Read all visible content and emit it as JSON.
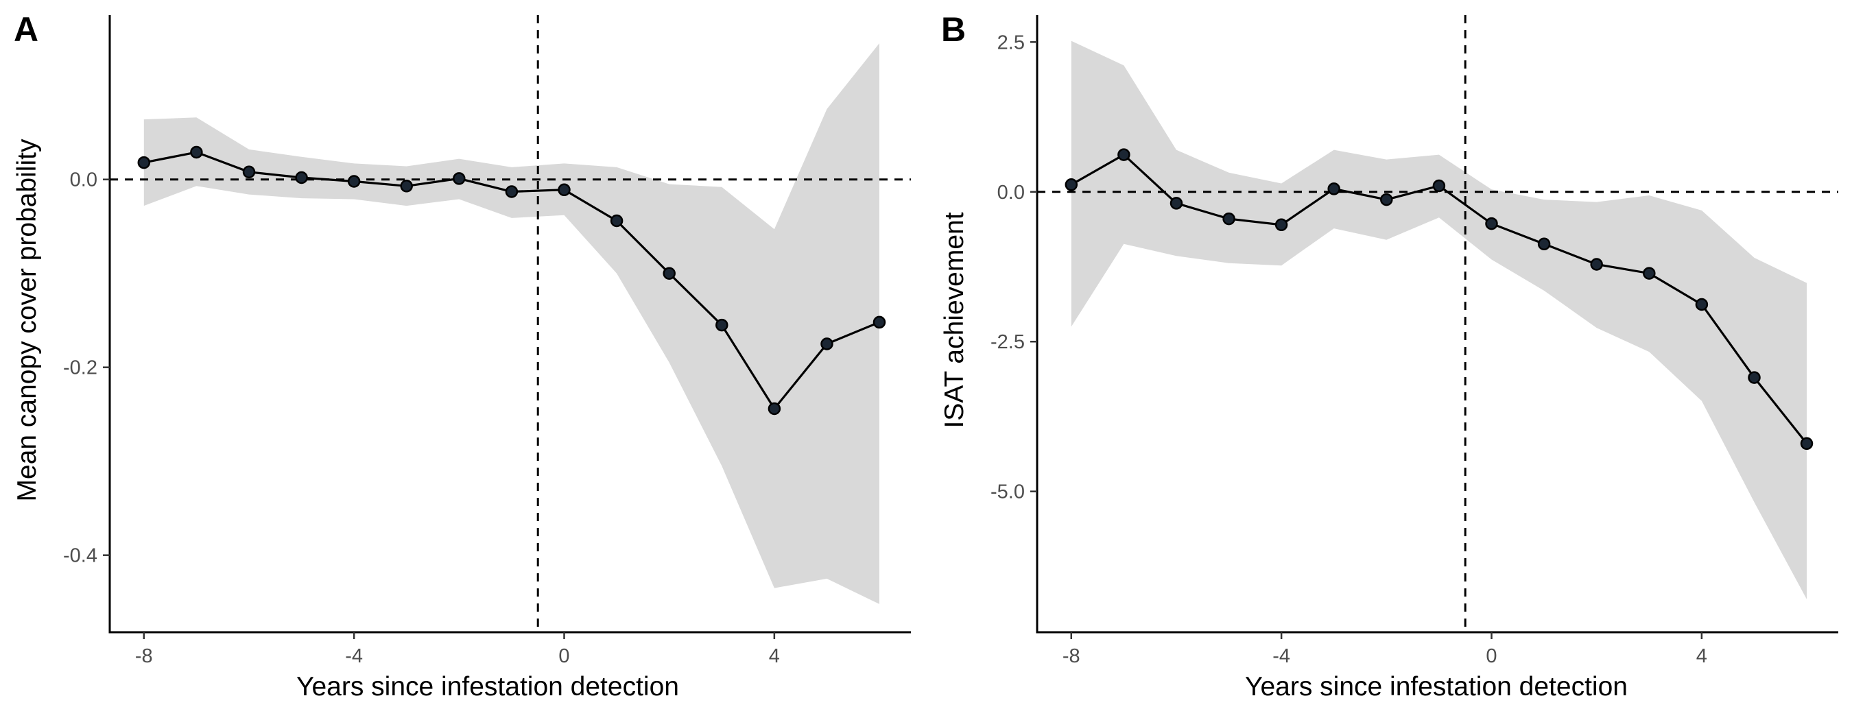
{
  "chart_data": [
    {
      "panel_label": "A",
      "type": "line",
      "xlabel": "Years since infestation detection",
      "ylabel": "Mean canopy cover probability",
      "xlim": [
        -8.65,
        6.6
      ],
      "ylim": [
        -0.482,
        0.175
      ],
      "x_ticks": [
        -8,
        -4,
        0,
        4
      ],
      "x_tick_labels": [
        "-8",
        "-4",
        "0",
        "4"
      ],
      "y_ticks": [
        -0.4,
        -0.2,
        0.0
      ],
      "y_tick_labels": [
        "-0.4",
        "-0.2",
        "0.0"
      ],
      "reference_lines": {
        "horizontal": 0.0,
        "vertical": -0.5
      },
      "x": [
        -8,
        -7,
        -6,
        -5,
        -4,
        -3,
        -2,
        -1,
        0,
        1,
        2,
        3,
        4,
        5,
        6
      ],
      "y": [
        0.018,
        0.029,
        0.008,
        0.002,
        -0.002,
        -0.007,
        0.001,
        -0.013,
        -0.011,
        -0.044,
        -0.1,
        -0.155,
        -0.244,
        -0.175,
        -0.152
      ],
      "ci_lower": [
        -0.028,
        -0.007,
        -0.016,
        -0.02,
        -0.021,
        -0.028,
        -0.021,
        -0.041,
        -0.038,
        -0.1,
        -0.195,
        -0.305,
        -0.435,
        -0.425,
        -0.452
      ],
      "ci_upper": [
        0.064,
        0.066,
        0.032,
        0.024,
        0.017,
        0.014,
        0.022,
        0.013,
        0.017,
        0.013,
        -0.005,
        -0.008,
        -0.053,
        0.075,
        0.145
      ],
      "grid": false,
      "legend": "none"
    },
    {
      "panel_label": "B",
      "type": "line",
      "xlabel": "Years since infestation detection",
      "ylabel": "ISAT achievement",
      "xlim": [
        -8.65,
        6.6
      ],
      "ylim": [
        -7.35,
        2.95
      ],
      "x_ticks": [
        -8,
        -4,
        0,
        4
      ],
      "x_tick_labels": [
        "-8",
        "-4",
        "0",
        "4"
      ],
      "y_ticks": [
        -5.0,
        -2.5,
        0.0,
        2.5
      ],
      "y_tick_labels": [
        "-5.0",
        "-2.5",
        "0.0",
        "2.5"
      ],
      "reference_lines": {
        "horizontal": 0.0,
        "vertical": -0.5
      },
      "x": [
        -8,
        -7,
        -6,
        -5,
        -4,
        -3,
        -2,
        -1,
        0,
        1,
        2,
        3,
        4,
        5,
        6
      ],
      "y": [
        0.12,
        0.62,
        -0.19,
        -0.45,
        -0.55,
        0.05,
        -0.13,
        0.1,
        -0.53,
        -0.87,
        -1.21,
        -1.36,
        -1.88,
        -3.1,
        -4.2
      ],
      "ci_lower": [
        -2.25,
        -0.87,
        -1.07,
        -1.19,
        -1.23,
        -0.61,
        -0.8,
        -0.43,
        -1.13,
        -1.65,
        -2.27,
        -2.67,
        -3.49,
        -5.18,
        -6.8
      ],
      "ci_upper": [
        2.52,
        2.11,
        0.7,
        0.32,
        0.14,
        0.7,
        0.54,
        0.62,
        0.04,
        -0.13,
        -0.17,
        -0.06,
        -0.31,
        -1.1,
        -1.52
      ],
      "grid": false,
      "legend": "none"
    }
  ]
}
